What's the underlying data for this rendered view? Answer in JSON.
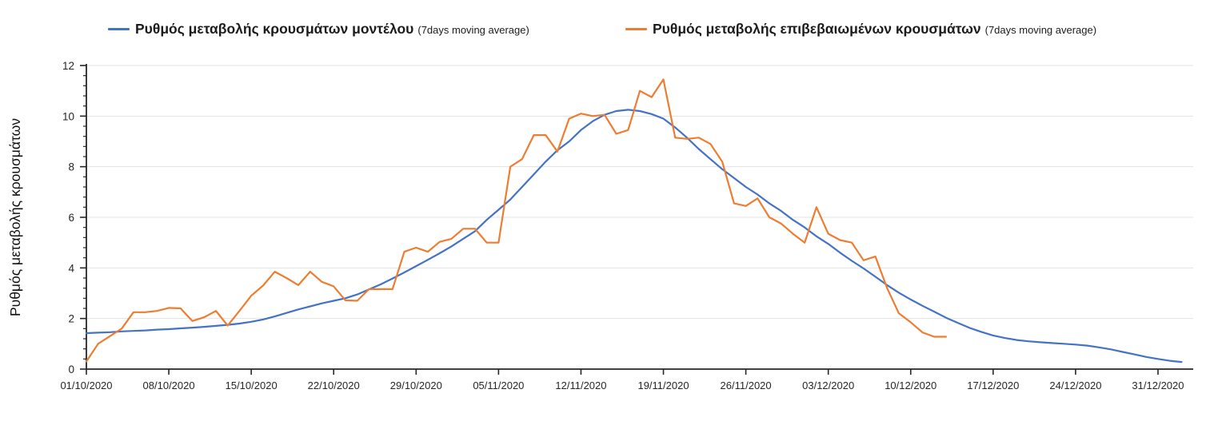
{
  "legend": [
    {
      "id": "model",
      "label": "Ρυθμός μεταβολής κρουσμάτων μοντέλου",
      "note": "(7days moving average)",
      "color": "#4472C4"
    },
    {
      "id": "confirmed",
      "label": "Ρυθμός μεταβολής επιβεβαιωμένων κρουσμάτων",
      "note": "(7days moving average)",
      "color": "#ED7D31"
    }
  ],
  "chart_data": {
    "type": "line",
    "title": "",
    "xlabel": "",
    "ylabel": "Ρυθμός μεταβολής κρουσμάτων",
    "ylim": [
      0,
      12
    ],
    "yticks": [
      0,
      2,
      4,
      6,
      8,
      10,
      12
    ],
    "y_minor_unit": 0.4,
    "grid": "horizontal",
    "legend_position": "top",
    "x_start_date": "01/10/2020",
    "x_tick_interval_days": 7,
    "x_tick_labels": [
      "01/10/2020",
      "08/10/2020",
      "15/10/2020",
      "22/10/2020",
      "29/10/2020",
      "05/11/2020",
      "12/11/2020",
      "19/11/2020",
      "26/11/2020",
      "03/12/2020",
      "10/12/2020",
      "17/12/2020",
      "24/12/2020",
      "31/12/2020"
    ],
    "series": [
      {
        "id": "model",
        "name": "Ρυθμός μεταβολής κρουσμάτων μοντέλου (7days moving average)",
        "color": "#4472C4",
        "values": [
          1.42,
          1.44,
          1.46,
          1.49,
          1.51,
          1.53,
          1.56,
          1.58,
          1.61,
          1.64,
          1.67,
          1.71,
          1.75,
          1.8,
          1.87,
          1.96,
          2.08,
          2.22,
          2.36,
          2.48,
          2.6,
          2.7,
          2.8,
          2.95,
          3.15,
          3.35,
          3.58,
          3.82,
          4.07,
          4.32,
          4.58,
          4.85,
          5.15,
          5.45,
          5.9,
          6.3,
          6.7,
          7.2,
          7.7,
          8.2,
          8.65,
          9.0,
          9.45,
          9.8,
          10.05,
          10.2,
          10.25,
          10.2,
          10.08,
          9.9,
          9.55,
          9.15,
          8.7,
          8.3,
          7.9,
          7.55,
          7.2,
          6.9,
          6.55,
          6.25,
          5.9,
          5.6,
          5.25,
          4.95,
          4.6,
          4.28,
          3.98,
          3.65,
          3.32,
          3.02,
          2.75,
          2.5,
          2.27,
          2.03,
          1.83,
          1.63,
          1.47,
          1.33,
          1.23,
          1.15,
          1.1,
          1.06,
          1.03,
          1.0,
          0.97,
          0.93,
          0.86,
          0.78,
          0.68,
          0.58,
          0.48,
          0.4,
          0.33,
          0.28
        ]
      },
      {
        "id": "confirmed",
        "name": "Ρυθμός μεταβολής επιβεβαιωμένων κρουσμάτων (7days moving average)",
        "color": "#ED7D31",
        "values": [
          0.3,
          1.0,
          1.3,
          1.6,
          2.25,
          2.25,
          2.3,
          2.42,
          2.4,
          1.9,
          2.05,
          2.3,
          1.72,
          2.3,
          2.9,
          3.3,
          3.85,
          3.6,
          3.32,
          3.85,
          3.45,
          3.27,
          2.72,
          2.7,
          3.16,
          3.16,
          3.16,
          4.64,
          4.8,
          4.64,
          5.03,
          5.15,
          5.55,
          5.55,
          5.0,
          5.0,
          8.0,
          8.3,
          9.25,
          9.25,
          8.6,
          9.9,
          10.1,
          10.0,
          10.05,
          9.3,
          9.45,
          11.0,
          10.75,
          11.45,
          9.15,
          9.1,
          9.15,
          8.9,
          8.2,
          6.55,
          6.45,
          6.75,
          6.0,
          5.75,
          5.35,
          5.0,
          6.4,
          5.35,
          5.1,
          5.0,
          4.3,
          4.45,
          3.2,
          2.2,
          1.85,
          1.45,
          1.28,
          1.28
        ]
      }
    ],
    "colors": {
      "axis": "#262626",
      "grid": "#e3e3e3",
      "tick_label": "#262626"
    }
  }
}
